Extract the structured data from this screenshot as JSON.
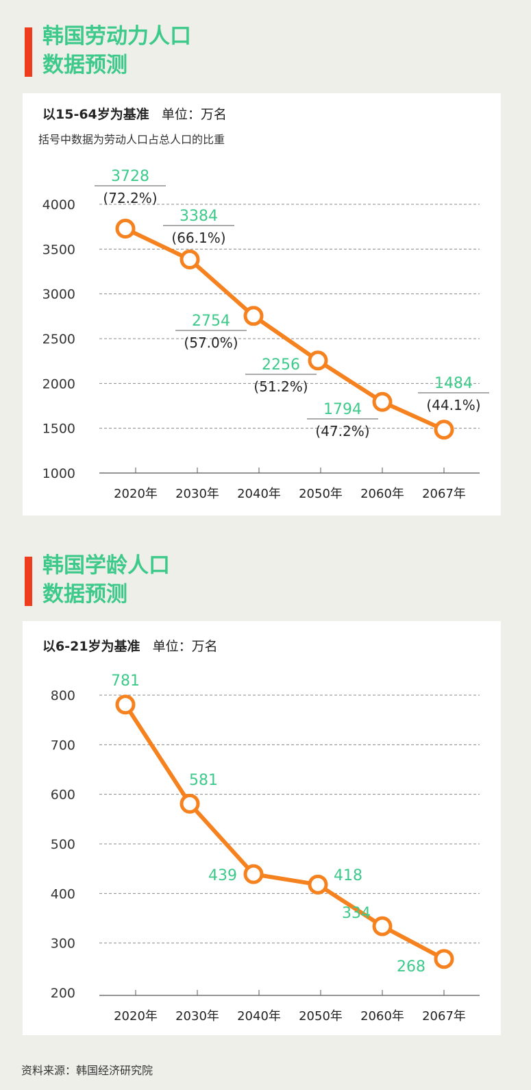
{
  "colors": {
    "accent": "#f5821f",
    "label": "#3cc98a",
    "marker": "#f03c1e"
  },
  "source": "资料来源：韩国经济研究院",
  "chart_data": [
    {
      "type": "line",
      "title": "韩国劳动力人口数据预测",
      "title_line1": "韩国劳动力人口",
      "title_line2": "数据预测",
      "subtitle": "以15-64岁为基准",
      "unit": "单位：万名",
      "note": "括号中数据为劳动人口占总人口的比重",
      "categories": [
        "2020年",
        "2030年",
        "2040年",
        "2050年",
        "2060年",
        "2067年"
      ],
      "values": [
        3728,
        3384,
        2754,
        2256,
        1794,
        1484
      ],
      "value_labels": [
        "3728",
        "3384",
        "2754",
        "2256",
        "1794",
        "1484"
      ],
      "share_labels": [
        "(72.2%)",
        "(66.1%)",
        "(57.0%)",
        "(51.2%)",
        "(47.2%)",
        "(44.1%)"
      ],
      "yticks": [
        "1000",
        "1500",
        "2000",
        "2500",
        "3000",
        "3500",
        "4000"
      ],
      "ylim": [
        1000,
        4000
      ],
      "grid": true
    },
    {
      "type": "line",
      "title": "韩国学龄人口数据预测",
      "title_line1": "韩国学龄人口",
      "title_line2": "数据预测",
      "subtitle": "以6-21岁为基准",
      "unit": "单位：万名",
      "categories": [
        "2020年",
        "2030年",
        "2040年",
        "2050年",
        "2060年",
        "2067年"
      ],
      "values": [
        781,
        581,
        439,
        418,
        334,
        268
      ],
      "value_labels": [
        "781",
        "581",
        "439",
        "418",
        "334",
        "268"
      ],
      "yticks": [
        "200",
        "300",
        "400",
        "500",
        "600",
        "700",
        "800"
      ],
      "ylim": [
        200,
        800
      ],
      "grid": true
    }
  ]
}
